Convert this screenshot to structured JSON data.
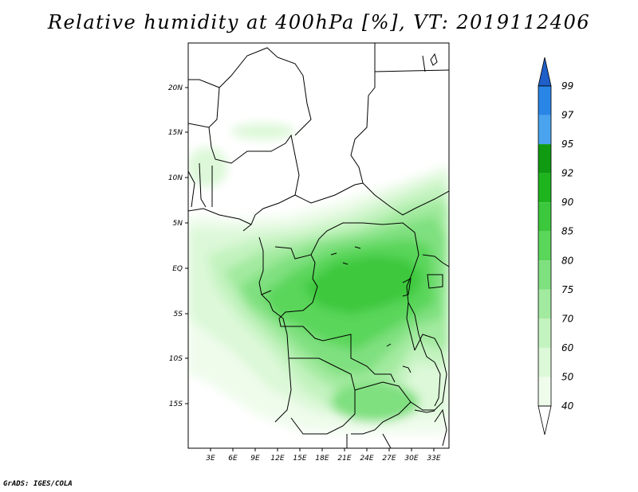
{
  "title": "Relative humidity at 400hPa [%], VT: 2019112406",
  "credit": "GrADS: IGES/COLA",
  "map": {
    "lat_ticks": [
      "20N",
      "15N",
      "10N",
      "5N",
      "EQ",
      "5S",
      "10S",
      "15S"
    ],
    "lon_ticks": [
      "3E",
      "6E",
      "9E",
      "12E",
      "15E",
      "18E",
      "21E",
      "24E",
      "27E",
      "30E",
      "33E"
    ]
  },
  "colorbar": {
    "levels": [
      {
        "label": "99",
        "color": "#1e6fd8"
      },
      {
        "label": "97",
        "color": "#2a86e6"
      },
      {
        "label": "95",
        "color": "#4aa3ee"
      },
      {
        "label": "92",
        "color": "#0f9a12"
      },
      {
        "label": "90",
        "color": "#1eb41e"
      },
      {
        "label": "85",
        "color": "#3cc83c"
      },
      {
        "label": "80",
        "color": "#5ad65a"
      },
      {
        "label": "75",
        "color": "#7fe07f"
      },
      {
        "label": "70",
        "color": "#a2ea9f"
      },
      {
        "label": "60",
        "color": "#c3f3bf"
      },
      {
        "label": "50",
        "color": "#dcf8d8"
      },
      {
        "label": "40",
        "color": "#effcec"
      }
    ],
    "top_arrow_color": "#1e5fc8"
  }
}
